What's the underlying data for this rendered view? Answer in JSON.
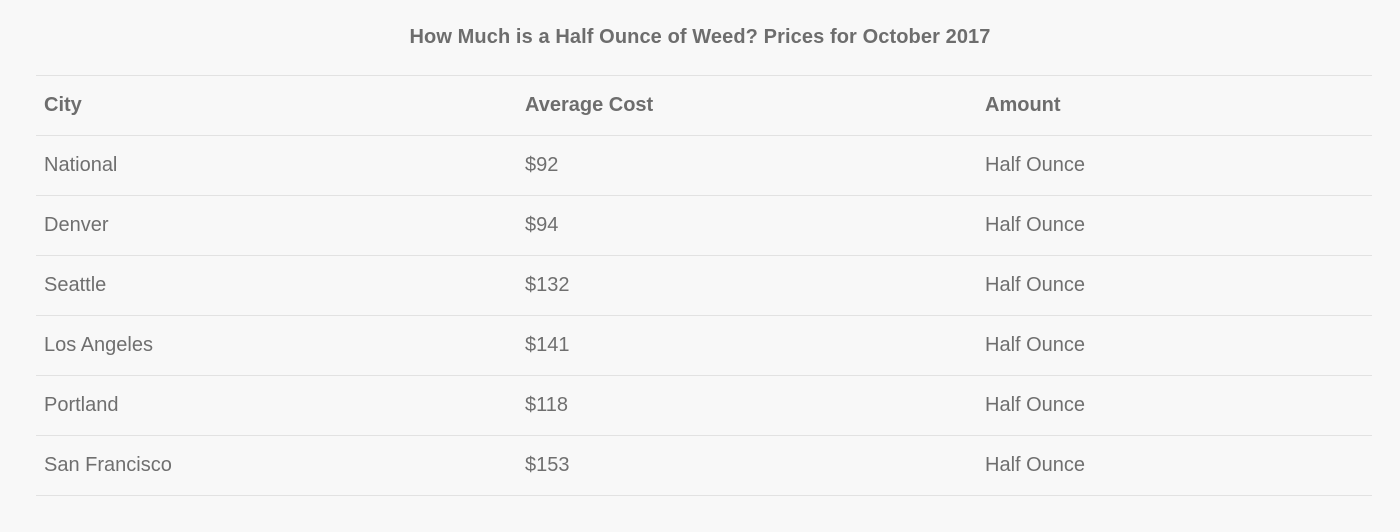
{
  "colors": {
    "page_background": "#f8f8f8",
    "text": "#6e6e6e",
    "divider": "#e2e2e2"
  },
  "chart_data": {
    "type": "table",
    "title": "How Much is a Half Ounce of Weed? Prices for October 2017",
    "columns": [
      "City",
      "Average Cost",
      "Amount"
    ],
    "rows": [
      [
        "National",
        "$92",
        "Half Ounce"
      ],
      [
        "Denver",
        "$94",
        "Half Ounce"
      ],
      [
        "Seattle",
        "$132",
        "Half Ounce"
      ],
      [
        "Los Angeles",
        "$141",
        "Half Ounce"
      ],
      [
        "Portland",
        "$118",
        "Half Ounce"
      ],
      [
        "San Francisco",
        "$153",
        "Half Ounce"
      ]
    ],
    "values_numeric_usd": [
      92,
      94,
      132,
      141,
      118,
      153
    ],
    "amount_unit": "Half Ounce",
    "period": "October 2017"
  }
}
